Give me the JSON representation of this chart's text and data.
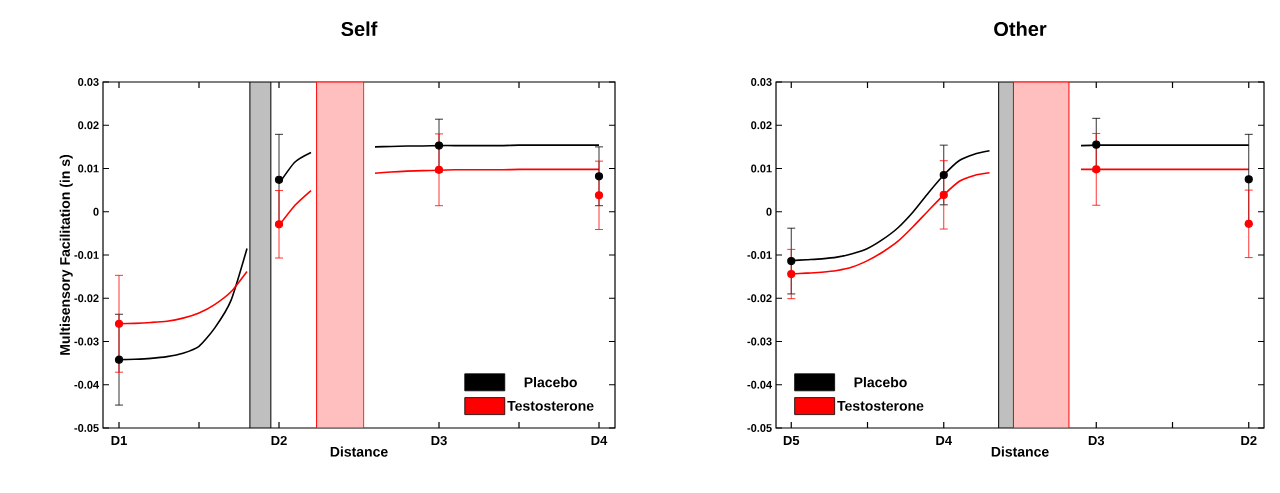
{
  "chart_data": [
    {
      "type": "scatter",
      "title": "Self",
      "xlabel": "Distance",
      "ylabel": "Multisensory Facilitation (in s)",
      "legend": "bottom right",
      "categories": [
        "D1",
        null,
        null,
        null,
        null,
        null,
        null,
        null,
        null,
        null,
        "D2",
        null,
        null,
        null,
        null,
        null,
        null,
        null,
        null,
        null,
        "D3",
        null,
        null,
        null,
        null,
        null,
        null,
        null,
        null,
        null,
        "D4"
      ],
      "ylim": [
        -0.05,
        0.03
      ],
      "yticks": [
        -0.05,
        -0.04,
        -0.03,
        -0.02,
        -0.01,
        0,
        0.01,
        0.02,
        0.03
      ],
      "series": [
        {
          "name": "Placebo",
          "marker": "circle",
          "color": "#000000",
          "values": [
            -0.0342,
            null,
            null,
            null,
            null,
            null,
            null,
            null,
            null,
            null,
            0.0074,
            null,
            null,
            null,
            null,
            null,
            null,
            null,
            null,
            null,
            0.0153,
            null,
            null,
            null,
            null,
            null,
            null,
            null,
            null,
            null,
            0.0082
          ],
          "errors": [
            0.0105,
            null,
            null,
            null,
            null,
            null,
            null,
            null,
            null,
            null,
            0.0105,
            null,
            null,
            null,
            null,
            null,
            null,
            null,
            null,
            null,
            0.0061,
            null,
            null,
            null,
            null,
            null,
            null,
            null,
            null,
            null,
            0.0068
          ]
        },
        {
          "name": "Testosterone",
          "marker": "circle",
          "color": "#ff0000",
          "values": [
            -0.0259,
            null,
            null,
            null,
            null,
            null,
            null,
            null,
            null,
            null,
            -0.0029,
            null,
            null,
            null,
            null,
            null,
            null,
            null,
            null,
            null,
            0.0097,
            null,
            null,
            null,
            null,
            null,
            null,
            null,
            null,
            null,
            0.0038
          ],
          "errors": [
            0.0112,
            null,
            null,
            null,
            null,
            null,
            null,
            null,
            null,
            null,
            0.0078,
            null,
            null,
            null,
            null,
            null,
            null,
            null,
            null,
            null,
            0.0083,
            null,
            null,
            null,
            null,
            null,
            null,
            null,
            null,
            null,
            0.0079
          ]
        },
        {
          "type": "line",
          "marker": "none",
          "line_style": "solid",
          "color": "#000000",
          "values": [
            -0.0342,
            -0.0341,
            -0.0339,
            -0.0335,
            -0.0327,
            -0.0311,
            -0.0268,
            -0.0205,
            -0.0085,
            null,
            0.0065,
            0.0115,
            0.0137,
            null,
            null,
            null,
            0.015,
            0.0151,
            0.0152,
            0.0152,
            0.0153,
            0.0153,
            0.0153,
            0.0153,
            0.0153,
            0.0154,
            0.0154,
            0.0154,
            0.0154,
            0.0154,
            0.0154
          ]
        },
        {
          "type": "line",
          "marker": "none",
          "line_style": "solid",
          "color": "#ff0000",
          "values": [
            -0.0259,
            -0.0258,
            -0.0256,
            -0.0253,
            -0.0246,
            -0.0234,
            -0.0214,
            -0.0185,
            -0.0138,
            null,
            -0.0032,
            0.0015,
            0.0049,
            null,
            null,
            null,
            0.0089,
            0.0092,
            0.0094,
            0.0095,
            0.0096,
            0.0097,
            0.0097,
            0.0097,
            0.0097,
            0.0098,
            0.0098,
            0.0098,
            0.0098,
            0.0098,
            0.0098
          ]
        }
      ]
    },
    {
      "type": "scatter",
      "title": "Other",
      "xlabel": "Distance",
      "legend": "bottom left",
      "categories": [
        "D5",
        null,
        null,
        null,
        null,
        null,
        null,
        null,
        null,
        null,
        "D4",
        null,
        null,
        null,
        null,
        null,
        null,
        null,
        null,
        null,
        "D3",
        null,
        null,
        null,
        null,
        null,
        null,
        null,
        null,
        null,
        "D2"
      ],
      "ylim": [
        -0.05,
        0.03
      ],
      "yticks": [
        -0.05,
        -0.04,
        -0.03,
        -0.02,
        -0.01,
        0,
        0.01,
        0.02,
        0.03
      ],
      "series": [
        {
          "name": "Placebo",
          "marker": "circle",
          "color": "#000000",
          "values": [
            -0.0114,
            null,
            null,
            null,
            null,
            null,
            null,
            null,
            null,
            null,
            0.0085,
            null,
            null,
            null,
            null,
            null,
            null,
            null,
            null,
            null,
            0.0155,
            null,
            null,
            null,
            null,
            null,
            null,
            null,
            null,
            null,
            0.0075
          ],
          "errors": [
            0.0076,
            null,
            null,
            null,
            null,
            null,
            null,
            null,
            null,
            null,
            0.0069,
            null,
            null,
            null,
            null,
            null,
            null,
            null,
            null,
            null,
            0.0061,
            null,
            null,
            null,
            null,
            null,
            null,
            null,
            null,
            null,
            0.0104
          ]
        },
        {
          "name": "Testosterone",
          "marker": "circle",
          "color": "#ff0000",
          "values": [
            -0.0144,
            null,
            null,
            null,
            null,
            null,
            null,
            null,
            null,
            null,
            0.0039,
            null,
            null,
            null,
            null,
            null,
            null,
            null,
            null,
            null,
            0.0098,
            null,
            null,
            null,
            null,
            null,
            null,
            null,
            null,
            null,
            -0.0028
          ],
          "errors": [
            0.0057,
            null,
            null,
            null,
            null,
            null,
            null,
            null,
            null,
            null,
            0.0079,
            null,
            null,
            null,
            null,
            null,
            null,
            null,
            null,
            null,
            0.0083,
            null,
            null,
            null,
            null,
            null,
            null,
            null,
            null,
            null,
            0.0078
          ]
        },
        {
          "type": "line",
          "marker": "none",
          "line_style": "solid",
          "color": "#000000",
          "values": [
            -0.0113,
            -0.0111,
            -0.0109,
            -0.0105,
            -0.0097,
            -0.0085,
            -0.0064,
            -0.0037,
            0.0,
            0.0044,
            0.0085,
            0.0118,
            0.0133,
            0.0141,
            null,
            null,
            null,
            null,
            null,
            0.0153,
            0.0154,
            0.0154,
            0.0154,
            0.0154,
            0.0154,
            0.0154,
            0.0154,
            0.0154,
            0.0154,
            0.0154,
            0.0154
          ]
        },
        {
          "type": "line",
          "marker": "none",
          "line_style": "solid",
          "color": "#ff0000",
          "values": [
            -0.0144,
            -0.0142,
            -0.014,
            -0.0136,
            -0.0128,
            -0.0113,
            -0.0093,
            -0.0068,
            -0.0034,
            0.0003,
            0.0039,
            0.007,
            0.0084,
            0.009,
            null,
            null,
            null,
            null,
            null,
            0.0098,
            0.0098,
            0.0098,
            0.0098,
            0.0098,
            0.0098,
            0.0098,
            0.0098,
            0.0098,
            0.0098,
            0.0098,
            0.0098
          ]
        }
      ]
    }
  ]
}
